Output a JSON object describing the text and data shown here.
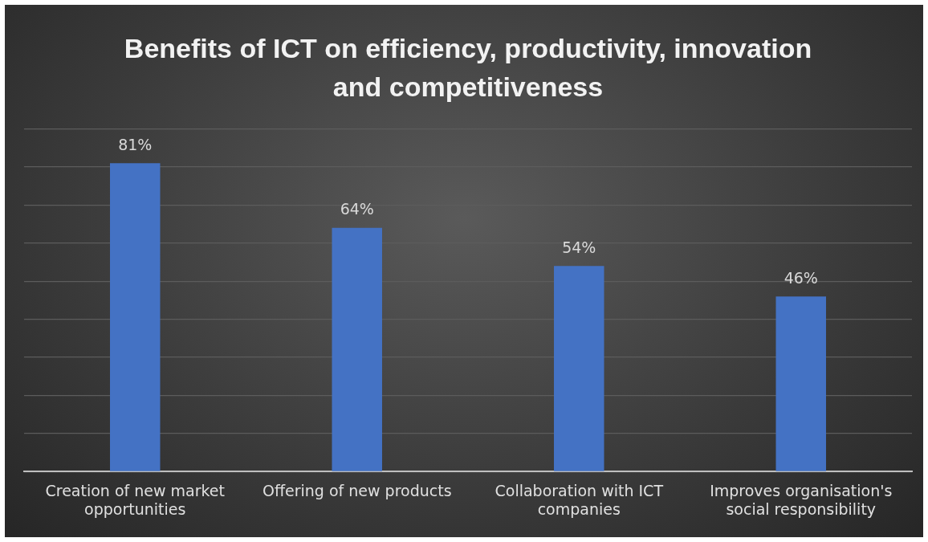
{
  "chart_data": {
    "type": "bar",
    "title": "Benefits of ICT on efficiency, productivity, innovation and competitiveness",
    "categories": [
      "Creation of new market opportunities",
      "Offering of new products",
      "Collaboration with ICT companies",
      "Improves organisation's social responsibility"
    ],
    "values": [
      81,
      64,
      54,
      46
    ],
    "color": "#4472c4",
    "value_labels": [
      "81%",
      "64%",
      "54%",
      "46%"
    ],
    "ylim": [
      0,
      90
    ],
    "yticks": [
      0,
      10,
      20,
      30,
      40,
      50,
      60,
      70,
      80,
      90
    ],
    "grid": "y",
    "tick_labels": "x",
    "legend": false
  }
}
